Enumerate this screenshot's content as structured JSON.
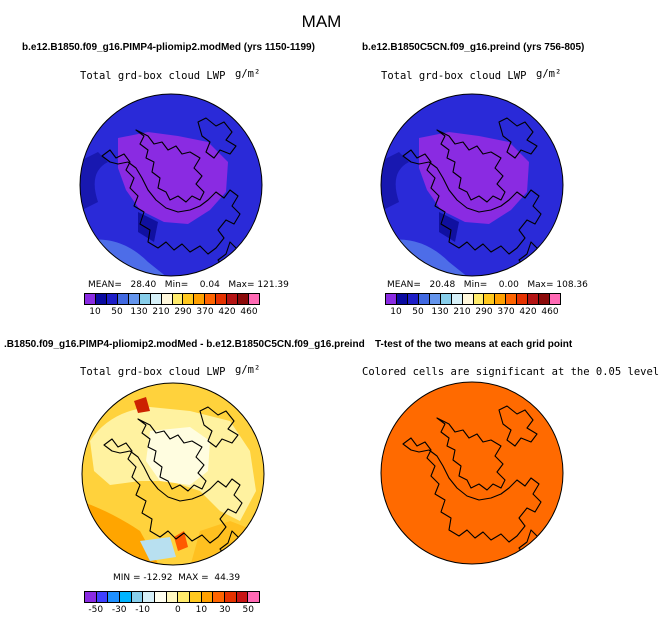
{
  "main_title": "MAM",
  "panels": [
    {
      "title": "b.e12.B1850.f09_g16.PIMP4-pliomip2.modMed (yrs 1150-1199)",
      "variable": "Total grd-box cloud LWP",
      "units": "g/m²",
      "stats": "MEAN=   28.40   Min=    0.04   Max= 121.39",
      "map_fill": "blue-purple"
    },
    {
      "title": "b.e12.B1850C5CN.f09_g16.preind (yrs 756-805)",
      "variable": "Total grd-box cloud LWP",
      "units": "g/m²",
      "stats": "MEAN=   20.48   Min=    0.00   Max= 108.36",
      "map_fill": "blue-purple"
    },
    {
      "title": ".B1850.f09_g16.PIMP4-pliomip2.modMed - b.e12.B1850C5CN.f09_g16.preind",
      "variable": "Total grd-box cloud LWP",
      "units": "g/m²",
      "stats": "MIN = -12.92  MAX =  44.39",
      "map_fill": "yellow-difference"
    },
    {
      "title": "T-test of the two means at each grid point",
      "variable": "Colored cells are significant at the 0.05 level",
      "units": "",
      "stats": "",
      "map_fill": "orange-significance"
    }
  ],
  "colorbar_abs": {
    "colors": [
      "#8a2be2",
      "#0a0aa0",
      "#1e1ec8",
      "#4169e1",
      "#6495ed",
      "#87ceeb",
      "#d6f0f8",
      "#fff8dc",
      "#ffeb6b",
      "#ffc81e",
      "#ffa000",
      "#ff6400",
      "#e63200",
      "#b41414",
      "#8b0a0a",
      "#ff69b4"
    ],
    "labels": [
      "10",
      "50",
      "130",
      "210",
      "290",
      "370",
      "420",
      "460"
    ]
  },
  "colorbar_diff": {
    "colors": [
      "#8a2be2",
      "#4040ff",
      "#1e90ff",
      "#00b4ff",
      "#87ceeb",
      "#d6f0f8",
      "#fffff0",
      "#fff8c0",
      "#ffeb6b",
      "#ffc81e",
      "#ffa000",
      "#ff6400",
      "#e63200",
      "#c81414",
      "#ff69b4"
    ],
    "labels": [
      "-50",
      "-30",
      "-10",
      "0",
      "10",
      "30",
      "50"
    ]
  }
}
